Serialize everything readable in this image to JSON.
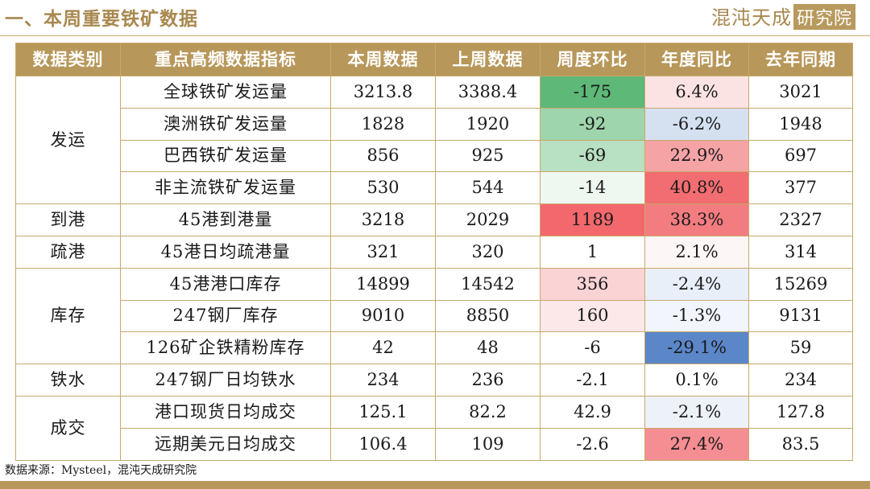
{
  "header": {
    "title": "一、本周重要铁矿数据",
    "logo_text": "混沌天成",
    "logo_box_text": "研究院"
  },
  "table": {
    "columns": [
      "数据类别",
      "重点高频数据指标",
      "本周数据",
      "上周数据",
      "周度环比",
      "年度同比",
      "去年同期"
    ],
    "groups": [
      {
        "category": "发运",
        "rows": [
          {
            "indicator": "全球铁矿发运量",
            "this_week": "3213.8",
            "last_week": "3388.4",
            "wow": "-175",
            "yoy": "6.4%",
            "last_year": "3021",
            "wow_color": "#5eb878",
            "yoy_color": "#fbe3e4"
          },
          {
            "indicator": "澳洲铁矿发运量",
            "this_week": "1828",
            "last_week": "1920",
            "wow": "-92",
            "yoy": "-6.2%",
            "last_year": "1948",
            "wow_color": "#9ed5ad",
            "yoy_color": "#d5e1f1"
          },
          {
            "indicator": "巴西铁矿发运量",
            "this_week": "856",
            "last_week": "925",
            "wow": "-69",
            "yoy": "22.9%",
            "last_year": "697",
            "wow_color": "#b8e0c2",
            "yoy_color": "#f6a3a6"
          },
          {
            "indicator": "非主流铁矿发运量",
            "this_week": "530",
            "last_week": "544",
            "wow": "-14",
            "yoy": "40.8%",
            "last_year": "377",
            "wow_color": "#eef7f0",
            "yoy_color": "#f26d71"
          }
        ]
      },
      {
        "category": "到港",
        "rows": [
          {
            "indicator": "45港到港量",
            "this_week": "3218",
            "last_week": "2029",
            "wow": "1189",
            "yoy": "38.3%",
            "last_year": "2327",
            "wow_color": "#f2686c",
            "yoy_color": "#f37c80"
          }
        ]
      },
      {
        "category": "疏港",
        "rows": [
          {
            "indicator": "45港日均疏港量",
            "this_week": "321",
            "last_week": "320",
            "wow": "1",
            "yoy": "2.1%",
            "last_year": "314",
            "wow_color": "#ffffff",
            "yoy_color": "#fdf6f6"
          }
        ]
      },
      {
        "category": "库存",
        "rows": [
          {
            "indicator": "45港港口库存",
            "this_week": "14899",
            "last_week": "14542",
            "wow": "356",
            "yoy": "-2.4%",
            "last_year": "15269",
            "wow_color": "#fad3d5",
            "yoy_color": "#e9eff8"
          },
          {
            "indicator": "247钢厂库存",
            "this_week": "9010",
            "last_week": "8850",
            "wow": "160",
            "yoy": "-1.3%",
            "last_year": "9131",
            "wow_color": "#fce8e9",
            "yoy_color": "#f2f5fb"
          },
          {
            "indicator": "126矿企铁精粉库存",
            "this_week": "42",
            "last_week": "48",
            "wow": "-6",
            "yoy": "-29.1%",
            "last_year": "59",
            "wow_color": "#ffffff",
            "yoy_color": "#5b87c9"
          }
        ]
      },
      {
        "category": "铁水",
        "rows": [
          {
            "indicator": "247钢厂日均铁水",
            "this_week": "234",
            "last_week": "236",
            "wow": "-2.1",
            "yoy": "0.1%",
            "last_year": "234",
            "wow_color": "#ffffff",
            "yoy_color": "#ffffff"
          }
        ]
      },
      {
        "category": "成交",
        "rows": [
          {
            "indicator": "港口现货日均成交",
            "this_week": "125.1",
            "last_week": "82.2",
            "wow": "42.9",
            "yoy": "-2.1%",
            "last_year": "127.8",
            "wow_color": "#ffffff",
            "yoy_color": "#edf2f9"
          },
          {
            "indicator": "远期美元日均成交",
            "this_week": "106.4",
            "last_week": "109",
            "wow": "-2.6",
            "yoy": "27.4%",
            "last_year": "83.5",
            "wow_color": "#ffffff",
            "yoy_color": "#f48e92"
          }
        ]
      }
    ]
  },
  "footer": {
    "source": "数据来源：Mysteel，混沌天成研究院"
  },
  "colors": {
    "accent": "#b8975a",
    "title": "#a8884f"
  }
}
